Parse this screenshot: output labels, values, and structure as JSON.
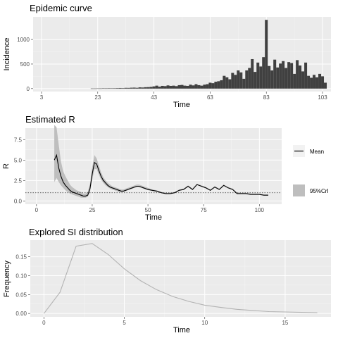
{
  "chart_data": [
    {
      "type": "bar",
      "title": "Epidemic curve",
      "xlabel": "Time",
      "ylabel": "Incidence",
      "xlim": [
        0,
        106
      ],
      "ylim": [
        -60,
        1460
      ],
      "xticks": [
        3,
        23,
        43,
        63,
        83,
        103
      ],
      "yticks": [
        0,
        500,
        1000
      ],
      "grid": true,
      "x": [
        21,
        22,
        23,
        24,
        25,
        26,
        27,
        28,
        29,
        30,
        31,
        32,
        33,
        34,
        35,
        36,
        37,
        38,
        39,
        40,
        41,
        42,
        43,
        44,
        45,
        46,
        47,
        48,
        49,
        50,
        51,
        52,
        53,
        54,
        55,
        56,
        57,
        58,
        59,
        60,
        61,
        62,
        63,
        64,
        65,
        66,
        67,
        68,
        69,
        70,
        71,
        72,
        73,
        74,
        75,
        76,
        77,
        78,
        79,
        80,
        81,
        82,
        83,
        84,
        85,
        86,
        87,
        88,
        89,
        90,
        91,
        92,
        93,
        94,
        95,
        96,
        97,
        98,
        99,
        100,
        101,
        102,
        103,
        104
      ],
      "values": [
        2,
        2,
        3,
        3,
        5,
        4,
        8,
        6,
        8,
        10,
        12,
        10,
        15,
        14,
        18,
        20,
        16,
        25,
        22,
        28,
        30,
        35,
        45,
        60,
        40,
        55,
        50,
        65,
        55,
        60,
        50,
        70,
        75,
        60,
        55,
        80,
        65,
        90,
        70,
        60,
        80,
        90,
        120,
        110,
        140,
        150,
        170,
        260,
        230,
        190,
        320,
        280,
        370,
        330,
        200,
        370,
        420,
        600,
        340,
        530,
        450,
        640,
        1400,
        460,
        370,
        590,
        430,
        510,
        560,
        420,
        540,
        520,
        300,
        580,
        470,
        350,
        530,
        260,
        220,
        280,
        230,
        300,
        250,
        120
      ]
    },
    {
      "type": "line",
      "title": "Estimated R",
      "xlabel": "Time",
      "ylabel": "R",
      "xlim": [
        -5,
        110
      ],
      "ylim": [
        -0.4,
        8.9
      ],
      "xticks": [
        0,
        25,
        50,
        75,
        100
      ],
      "yticks": [
        0.0,
        2.5,
        5.0,
        7.5
      ],
      "grid": true,
      "legend": "right",
      "reference_line": 1,
      "series": [
        {
          "name": "Mean",
          "x": [
            8,
            9,
            10,
            11,
            12,
            13,
            14,
            15,
            16,
            17,
            18,
            19,
            20,
            21,
            22,
            23,
            24,
            25,
            26,
            27,
            28,
            29,
            30,
            31,
            32,
            33,
            34,
            35,
            36,
            37,
            38,
            39,
            40,
            41,
            42,
            43,
            44,
            45,
            46,
            47,
            48,
            49,
            50,
            52,
            54,
            56,
            58,
            60,
            62,
            64,
            66,
            68,
            70,
            72,
            74,
            76,
            78,
            80,
            82,
            84,
            86,
            88,
            90,
            92,
            94,
            96,
            98,
            100,
            102,
            104
          ],
          "values": [
            5.0,
            5.6,
            4.0,
            3.0,
            2.3,
            1.9,
            1.6,
            1.3,
            1.1,
            1.0,
            0.9,
            0.8,
            0.7,
            0.6,
            0.6,
            0.7,
            1.5,
            3.3,
            4.7,
            4.5,
            3.7,
            3.0,
            2.5,
            2.2,
            1.9,
            1.7,
            1.6,
            1.5,
            1.4,
            1.3,
            1.2,
            1.2,
            1.3,
            1.4,
            1.5,
            1.6,
            1.7,
            1.8,
            1.8,
            1.7,
            1.6,
            1.5,
            1.4,
            1.3,
            1.2,
            1.0,
            0.9,
            0.9,
            1.0,
            1.3,
            1.4,
            1.8,
            1.4,
            2.0,
            1.8,
            1.6,
            1.3,
            1.7,
            1.4,
            1.9,
            1.6,
            1.4,
            0.9,
            0.9,
            0.9,
            0.8,
            0.8,
            0.8,
            0.7,
            0.7
          ]
        },
        {
          "name": "95%CrI",
          "x": [
            8,
            9,
            10,
            11,
            12,
            13,
            14,
            15,
            16,
            17,
            18,
            19,
            20,
            21,
            22,
            23,
            24,
            25,
            26,
            27,
            28,
            29,
            30,
            31,
            32,
            33,
            34,
            35,
            36,
            37,
            38,
            39,
            40,
            41,
            42,
            43,
            44,
            45,
            46,
            47,
            48,
            49,
            50,
            52,
            54,
            56,
            58,
            60,
            62,
            64,
            66,
            68,
            70,
            72,
            74,
            76,
            78,
            80,
            82,
            84,
            86,
            88,
            90,
            92,
            94,
            96,
            98,
            100,
            102,
            104
          ],
          "lower": [
            2.3,
            2.8,
            2.3,
            1.9,
            1.6,
            1.3,
            1.1,
            0.9,
            0.8,
            0.7,
            0.6,
            0.5,
            0.4,
            0.4,
            0.4,
            0.5,
            1.1,
            2.6,
            3.9,
            3.9,
            3.2,
            2.6,
            2.2,
            1.9,
            1.7,
            1.5,
            1.4,
            1.3,
            1.2,
            1.1,
            1.1,
            1.1,
            1.2,
            1.3,
            1.4,
            1.5,
            1.6,
            1.7,
            1.7,
            1.6,
            1.5,
            1.4,
            1.3,
            1.2,
            1.1,
            0.95,
            0.85,
            0.85,
            0.95,
            1.25,
            1.35,
            1.75,
            1.35,
            1.95,
            1.75,
            1.55,
            1.25,
            1.65,
            1.35,
            1.85,
            1.55,
            1.35,
            0.85,
            0.85,
            0.85,
            0.75,
            0.75,
            0.75,
            0.65,
            0.65
          ],
          "upper": [
            9.3,
            9.0,
            6.8,
            4.8,
            3.6,
            3.0,
            2.5,
            2.0,
            1.7,
            1.5,
            1.3,
            1.2,
            1.1,
            0.9,
            0.9,
            1.1,
            2.1,
            4.2,
            5.6,
            5.2,
            4.3,
            3.5,
            2.9,
            2.5,
            2.2,
            2.0,
            1.8,
            1.7,
            1.6,
            1.5,
            1.4,
            1.4,
            1.5,
            1.6,
            1.7,
            1.8,
            1.9,
            2.0,
            2.0,
            1.9,
            1.8,
            1.7,
            1.6,
            1.4,
            1.3,
            1.1,
            1.0,
            1.0,
            1.1,
            1.4,
            1.5,
            1.9,
            1.5,
            2.1,
            1.9,
            1.7,
            1.4,
            1.8,
            1.5,
            2.0,
            1.7,
            1.5,
            1.0,
            1.0,
            1.0,
            0.9,
            0.9,
            0.9,
            0.8,
            0.8
          ]
        }
      ]
    },
    {
      "type": "line",
      "title": "Explored SI distribution",
      "xlabel": "Time",
      "ylabel": "Frequency",
      "xlim": [
        -0.85,
        17.85
      ],
      "ylim": [
        -0.009,
        0.194
      ],
      "xticks": [
        0,
        5,
        10,
        15
      ],
      "yticks": [
        0.0,
        0.05,
        0.1,
        0.15
      ],
      "grid": true,
      "x": [
        0,
        1,
        2,
        3,
        4,
        5,
        6,
        7,
        8,
        9,
        10,
        11,
        12,
        13,
        14,
        15,
        16,
        17
      ],
      "values": [
        0.0,
        0.056,
        0.178,
        0.185,
        0.156,
        0.118,
        0.087,
        0.063,
        0.045,
        0.032,
        0.022,
        0.016,
        0.011,
        0.008,
        0.005,
        0.004,
        0.003,
        0.002
      ]
    }
  ]
}
